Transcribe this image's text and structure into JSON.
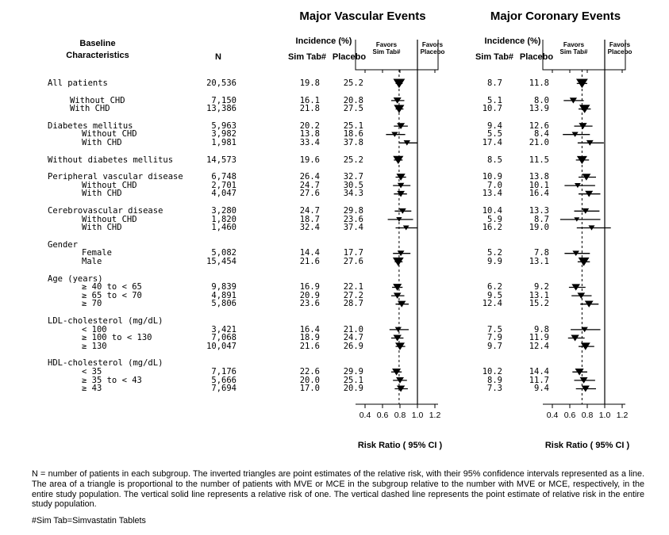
{
  "titles": {
    "left": "Major Vascular Events",
    "right": "Major Coronary Events"
  },
  "headers": {
    "baseline_line1": "Baseline",
    "baseline_line2": "Characteristics",
    "n": "N",
    "incidence": "Incidence (%)",
    "sim_tab": "Sim Tab#",
    "placebo": "Placebo"
  },
  "favors": {
    "favors": "Favors",
    "sim": "Sim Tab#",
    "placebo": "Placebo"
  },
  "axis": {
    "ticks": [
      "0.4",
      "0.6",
      "0.8",
      "1.0",
      "1.2"
    ],
    "tick_values": [
      0.4,
      0.6,
      0.8,
      1.0,
      1.2
    ],
    "min": 0.4,
    "max": 1.2,
    "label": "Risk Ratio ( 95% CI )"
  },
  "footnote": "N = number of patients in each subgroup. The inverted triangles are point estimates of the relative risk, with their 95% confidence intervals represented as a line. The area of a triangle is proportional to the number of patients with MVE or MCE in the subgroup relative to the number with MVE or MCE, respectively, in the entire study population. The vertical solid line represents a relative risk of one. The vertical dashed line represents the point estimate of relative risk in the entire study population.",
  "simtab_note": "#Sim Tab=Simvastatin Tablets",
  "chart_data": {
    "type": "forest",
    "xlim": [
      0.4,
      1.2
    ],
    "xlabel": "Risk Ratio ( 95% CI )",
    "solid_reference_line": 1.0,
    "plots": [
      {
        "name": "Major Vascular Events",
        "key": "mve",
        "pooled_rr": 0.79
      },
      {
        "name": "Major Coronary Events",
        "key": "mce",
        "pooled_rr": 0.74
      }
    ],
    "groups": [
      {
        "rows": [
          {
            "label": "All patients",
            "indent": 0,
            "n": "20,536",
            "mve": {
              "sim": "19.8",
              "placebo": "25.2",
              "rr": 0.79,
              "lo": 0.75,
              "hi": 0.83,
              "w": 1.0
            },
            "mce": {
              "sim": "8.7",
              "placebo": "11.8",
              "rr": 0.74,
              "lo": 0.68,
              "hi": 0.8,
              "w": 1.0
            }
          }
        ]
      },
      {
        "rows": [
          {
            "label": "Without CHD",
            "indent": 1,
            "n": "7,150",
            "mve": {
              "sim": "16.1",
              "placebo": "20.8",
              "rr": 0.77,
              "lo": 0.7,
              "hi": 0.85,
              "w": 0.29
            },
            "mce": {
              "sim": "5.1",
              "placebo": "8.0",
              "rr": 0.64,
              "lo": 0.53,
              "hi": 0.76,
              "w": 0.22
            }
          },
          {
            "label": "With CHD",
            "indent": 1,
            "n": "13,386",
            "mve": {
              "sim": "21.8",
              "placebo": "27.5",
              "rr": 0.79,
              "lo": 0.75,
              "hi": 0.84,
              "w": 0.71
            },
            "mce": {
              "sim": "10.7",
              "placebo": "13.9",
              "rr": 0.77,
              "lo": 0.7,
              "hi": 0.84,
              "w": 0.78
            }
          }
        ]
      },
      {
        "rows": [
          {
            "label": "Diabetes mellitus",
            "indent": 0,
            "n": "5,963",
            "mve": {
              "sim": "20.2",
              "placebo": "25.1",
              "rr": 0.81,
              "lo": 0.73,
              "hi": 0.89,
              "w": 0.29
            },
            "mce": {
              "sim": "9.4",
              "placebo": "12.6",
              "rr": 0.75,
              "lo": 0.65,
              "hi": 0.86,
              "w": 0.31
            }
          },
          {
            "label": "Without CHD",
            "indent": 2,
            "n": "3,982",
            "mve": {
              "sim": "13.8",
              "placebo": "18.6",
              "rr": 0.74,
              "lo": 0.64,
              "hi": 0.86,
              "w": 0.14
            },
            "mce": {
              "sim": "5.5",
              "placebo": "8.4",
              "rr": 0.66,
              "lo": 0.52,
              "hi": 0.83,
              "w": 0.13
            }
          },
          {
            "label": "With CHD",
            "indent": 2,
            "n": "1,981",
            "mve": {
              "sim": "33.4",
              "placebo": "37.8",
              "rr": 0.88,
              "lo": 0.79,
              "hi": 1.0,
              "w": 0.15
            },
            "mce": {
              "sim": "17.4",
              "placebo": "21.0",
              "rr": 0.83,
              "lo": 0.69,
              "hi": 0.99,
              "w": 0.18
            }
          }
        ]
      },
      {
        "rows": [
          {
            "label": "Without diabetes mellitus",
            "indent": 0,
            "n": "14,573",
            "mve": {
              "sim": "19.6",
              "placebo": "25.2",
              "rr": 0.78,
              "lo": 0.73,
              "hi": 0.83,
              "w": 0.71
            },
            "mce": {
              "sim": "8.5",
              "placebo": "11.5",
              "rr": 0.74,
              "lo": 0.67,
              "hi": 0.82,
              "w": 0.69
            }
          }
        ]
      },
      {
        "rows": [
          {
            "label": "Peripheral vascular disease",
            "indent": 0,
            "n": "6,748",
            "mve": {
              "sim": "26.4",
              "placebo": "32.7",
              "rr": 0.81,
              "lo": 0.75,
              "hi": 0.87,
              "w": 0.43
            },
            "mce": {
              "sim": "10.9",
              "placebo": "13.8",
              "rr": 0.79,
              "lo": 0.7,
              "hi": 0.9,
              "w": 0.4
            }
          },
          {
            "label": "Without CHD",
            "indent": 2,
            "n": "2,701",
            "mve": {
              "sim": "24.7",
              "placebo": "30.5",
              "rr": 0.81,
              "lo": 0.72,
              "hi": 0.92,
              "w": 0.16
            },
            "mce": {
              "sim": "7.0",
              "placebo": "10.1",
              "rr": 0.69,
              "lo": 0.54,
              "hi": 0.89,
              "w": 0.11
            }
          },
          {
            "label": "With CHD",
            "indent": 2,
            "n": "4,047",
            "mve": {
              "sim": "27.6",
              "placebo": "34.3",
              "rr": 0.81,
              "lo": 0.73,
              "hi": 0.88,
              "w": 0.27
            },
            "mce": {
              "sim": "13.4",
              "placebo": "16.4",
              "rr": 0.82,
              "lo": 0.7,
              "hi": 0.95,
              "w": 0.29
            }
          }
        ]
      },
      {
        "rows": [
          {
            "label": "Cerebrovascular disease",
            "indent": 0,
            "n": "3,280",
            "mve": {
              "sim": "24.7",
              "placebo": "29.8",
              "rr": 0.83,
              "lo": 0.74,
              "hi": 0.93,
              "w": 0.19
            },
            "mce": {
              "sim": "10.4",
              "placebo": "13.3",
              "rr": 0.78,
              "lo": 0.65,
              "hi": 0.94,
              "w": 0.18
            }
          },
          {
            "label": "Without CHD",
            "indent": 2,
            "n": "1,820",
            "mve": {
              "sim": "18.7",
              "placebo": "23.6",
              "rr": 0.79,
              "lo": 0.66,
              "hi": 0.95,
              "w": 0.08
            },
            "mce": {
              "sim": "5.9",
              "placebo": "8.7",
              "rr": 0.68,
              "lo": 0.49,
              "hi": 0.95,
              "w": 0.06
            }
          },
          {
            "label": "With CHD",
            "indent": 2,
            "n": "1,460",
            "mve": {
              "sim": "32.4",
              "placebo": "37.4",
              "rr": 0.87,
              "lo": 0.75,
              "hi": 1.0,
              "w": 0.11
            },
            "mce": {
              "sim": "16.2",
              "placebo": "19.0",
              "rr": 0.85,
              "lo": 0.68,
              "hi": 1.07,
              "w": 0.12
            }
          }
        ]
      },
      {
        "rows": [
          {
            "label": "Gender",
            "indent": 0,
            "n": null,
            "mve": null,
            "mce": null
          },
          {
            "label": "Female",
            "indent": 2,
            "n": "5,082",
            "mve": {
              "sim": "14.4",
              "placebo": "17.7",
              "rr": 0.81,
              "lo": 0.72,
              "hi": 0.92,
              "w": 0.18
            },
            "mce": {
              "sim": "5.2",
              "placebo": "7.8",
              "rr": 0.67,
              "lo": 0.54,
              "hi": 0.83,
              "w": 0.16
            }
          },
          {
            "label": "Male",
            "indent": 2,
            "n": "15,454",
            "mve": {
              "sim": "21.6",
              "placebo": "27.6",
              "rr": 0.78,
              "lo": 0.74,
              "hi": 0.83,
              "w": 0.82
            },
            "mce": {
              "sim": "9.9",
              "placebo": "13.1",
              "rr": 0.76,
              "lo": 0.69,
              "hi": 0.83,
              "w": 0.84
            }
          }
        ]
      },
      {
        "rows": [
          {
            "label": "Age (years)",
            "indent": 0,
            "n": null,
            "mve": null,
            "mce": null
          },
          {
            "label": "≥ 40 to < 65",
            "indent": 2,
            "n": "9,839",
            "mve": {
              "sim": "16.9",
              "placebo": "22.1",
              "rr": 0.77,
              "lo": 0.71,
              "hi": 0.83,
              "w": 0.41
            },
            "mce": {
              "sim": "6.2",
              "placebo": "9.2",
              "rr": 0.67,
              "lo": 0.59,
              "hi": 0.78,
              "w": 0.36
            }
          },
          {
            "label": "≥ 65 to < 70",
            "indent": 2,
            "n": "4,891",
            "mve": {
              "sim": "20.9",
              "placebo": "27.2",
              "rr": 0.77,
              "lo": 0.7,
              "hi": 0.85,
              "w": 0.25
            },
            "mce": {
              "sim": "9.5",
              "placebo": "13.1",
              "rr": 0.73,
              "lo": 0.62,
              "hi": 0.85,
              "w": 0.26
            }
          },
          {
            "label": "≥ 70",
            "indent": 2,
            "n": "5,806",
            "mve": {
              "sim": "23.6",
              "placebo": "28.7",
              "rr": 0.82,
              "lo": 0.75,
              "hi": 0.9,
              "w": 0.33
            },
            "mce": {
              "sim": "12.4",
              "placebo": "15.2",
              "rr": 0.82,
              "lo": 0.72,
              "hi": 0.93,
              "w": 0.38
            }
          }
        ]
      },
      {
        "rows": [
          {
            "label": "LDL-cholesterol (mg/dL)",
            "indent": 0,
            "n": null,
            "mve": null,
            "mce": null
          },
          {
            "label": "< 100",
            "indent": 2,
            "n": "3,421",
            "mve": {
              "sim": "16.4",
              "placebo": "21.0",
              "rr": 0.78,
              "lo": 0.68,
              "hi": 0.9,
              "w": 0.14
            },
            "mce": {
              "sim": "7.5",
              "placebo": "9.8",
              "rr": 0.77,
              "lo": 0.61,
              "hi": 0.95,
              "w": 0.14
            }
          },
          {
            "label": "≥ 100 to < 130",
            "indent": 2,
            "n": "7,068",
            "mve": {
              "sim": "18.9",
              "placebo": "24.7",
              "rr": 0.77,
              "lo": 0.7,
              "hi": 0.84,
              "w": 0.33
            },
            "mce": {
              "sim": "7.9",
              "placebo": "11.9",
              "rr": 0.66,
              "lo": 0.58,
              "hi": 0.77,
              "w": 0.33
            }
          },
          {
            "label": "≥ 130",
            "indent": 2,
            "n": "10,047",
            "mve": {
              "sim": "21.6",
              "placebo": "26.9",
              "rr": 0.8,
              "lo": 0.75,
              "hi": 0.86,
              "w": 0.53
            },
            "mce": {
              "sim": "9.7",
              "placebo": "12.4",
              "rr": 0.78,
              "lo": 0.7,
              "hi": 0.88,
              "w": 0.53
            }
          }
        ]
      },
      {
        "rows": [
          {
            "label": "HDL-cholesterol (mg/dL)",
            "indent": 0,
            "n": null,
            "mve": null,
            "mce": null
          },
          {
            "label": "< 35",
            "indent": 2,
            "n": "7,176",
            "mve": {
              "sim": "22.6",
              "placebo": "29.9",
              "rr": 0.76,
              "lo": 0.7,
              "hi": 0.82,
              "w": 0.41
            },
            "mce": {
              "sim": "10.2",
              "placebo": "14.4",
              "rr": 0.71,
              "lo": 0.63,
              "hi": 0.8,
              "w": 0.42
            }
          },
          {
            "label": "≥ 35 to < 43",
            "indent": 2,
            "n": "5,666",
            "mve": {
              "sim": "20.0",
              "placebo": "25.1",
              "rr": 0.8,
              "lo": 0.72,
              "hi": 0.88,
              "w": 0.28
            },
            "mce": {
              "sim": "8.9",
              "placebo": "11.7",
              "rr": 0.76,
              "lo": 0.65,
              "hi": 0.89,
              "w": 0.28
            }
          },
          {
            "label": "≥ 43",
            "indent": 2,
            "n": "7,694",
            "mve": {
              "sim": "17.0",
              "placebo": "20.9",
              "rr": 0.81,
              "lo": 0.74,
              "hi": 0.89,
              "w": 0.32
            },
            "mce": {
              "sim": "7.3",
              "placebo": "9.4",
              "rr": 0.78,
              "lo": 0.67,
              "hi": 0.9,
              "w": 0.31
            }
          }
        ]
      }
    ]
  }
}
